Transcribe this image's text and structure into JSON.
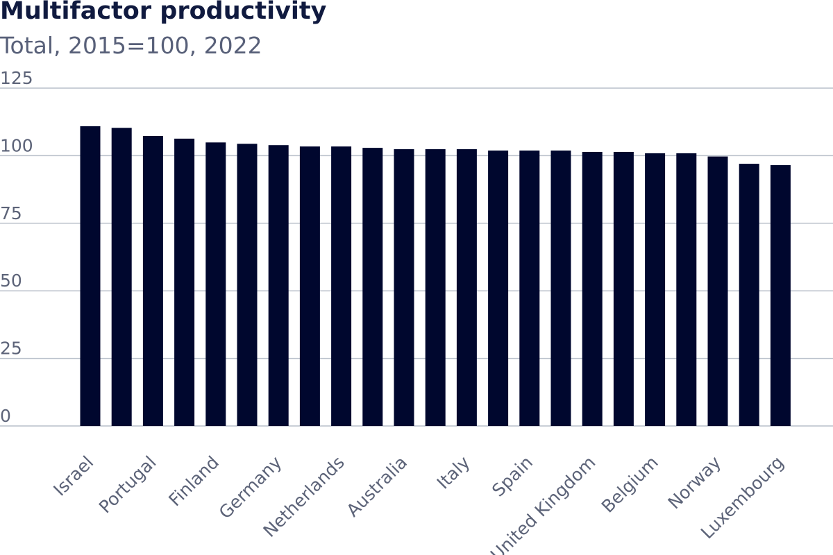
{
  "chart_data": {
    "type": "bar",
    "title": "Multifactor productivity",
    "subtitle": "Total, 2015=100, 2022",
    "categories": [
      "Israel",
      "",
      "Portugal",
      "",
      "Finland",
      "",
      "Germany",
      "",
      "Netherlands",
      "",
      "Australia",
      "",
      "Italy",
      "",
      "Spain",
      "",
      "United Kingdom",
      "",
      "Belgium",
      "",
      "Norway",
      "",
      "Luxembourg"
    ],
    "values": [
      110.9,
      110.3,
      107.3,
      106.3,
      104.9,
      104.4,
      103.9,
      103.4,
      103.4,
      102.9,
      102.4,
      102.4,
      102.4,
      101.9,
      101.9,
      101.9,
      101.4,
      101.4,
      100.9,
      100.9,
      99.7,
      97.0,
      96.5
    ],
    "ylim": [
      0,
      125
    ],
    "yticks": [
      0,
      25,
      50,
      75,
      100,
      125
    ],
    "grid": true,
    "bar_color": "#00072e"
  }
}
